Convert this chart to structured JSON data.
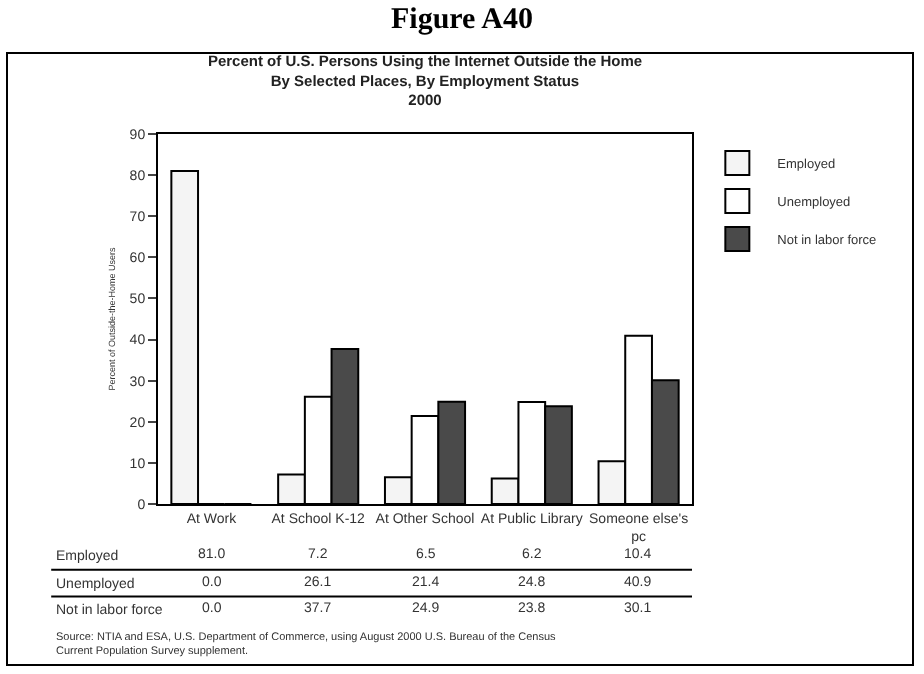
{
  "chart_data": {
    "type": "bar",
    "title": "Figure A40",
    "subtitle": "Percent of U.S. Persons Using the Internet Outside the Home\nBy Selected Places, By Employment Status\n2000",
    "ylabel": "Percent of Outside-the-Home Users",
    "categories": [
      "At Work",
      "At School K-12",
      "At Other School",
      "At Public Library",
      "Someone else's\npc"
    ],
    "series": [
      {
        "name": "Employed",
        "color": "#f4f4f4",
        "values": [
          81.0,
          7.2,
          6.5,
          6.2,
          10.4
        ],
        "value_labels": [
          "81.0",
          "7.2",
          "6.5",
          "6.2",
          "10.4"
        ]
      },
      {
        "name": "Unemployed",
        "color": "#ffffff",
        "values": [
          0.0,
          26.1,
          21.4,
          24.8,
          40.9
        ],
        "value_labels": [
          "0.0",
          "26.1",
          "21.4",
          "24.8",
          "40.9"
        ]
      },
      {
        "name": "Not in labor force",
        "color": "#4a4a4a",
        "values": [
          0.0,
          37.7,
          24.9,
          23.8,
          30.1
        ],
        "value_labels": [
          "0.0",
          "37.7",
          "24.9",
          "23.8",
          "30.1"
        ]
      }
    ],
    "ylim": [
      0,
      90
    ],
    "yticks": [
      0,
      10,
      20,
      30,
      40,
      50,
      60,
      70,
      80,
      90
    ],
    "grid": false,
    "legend": "top right",
    "annotations": [
      "Source: NTIA and ESA, U.S. Department of Commerce, using August 2000 U.S. Bureau of the Census\nCurrent Population Survey supplement."
    ]
  }
}
